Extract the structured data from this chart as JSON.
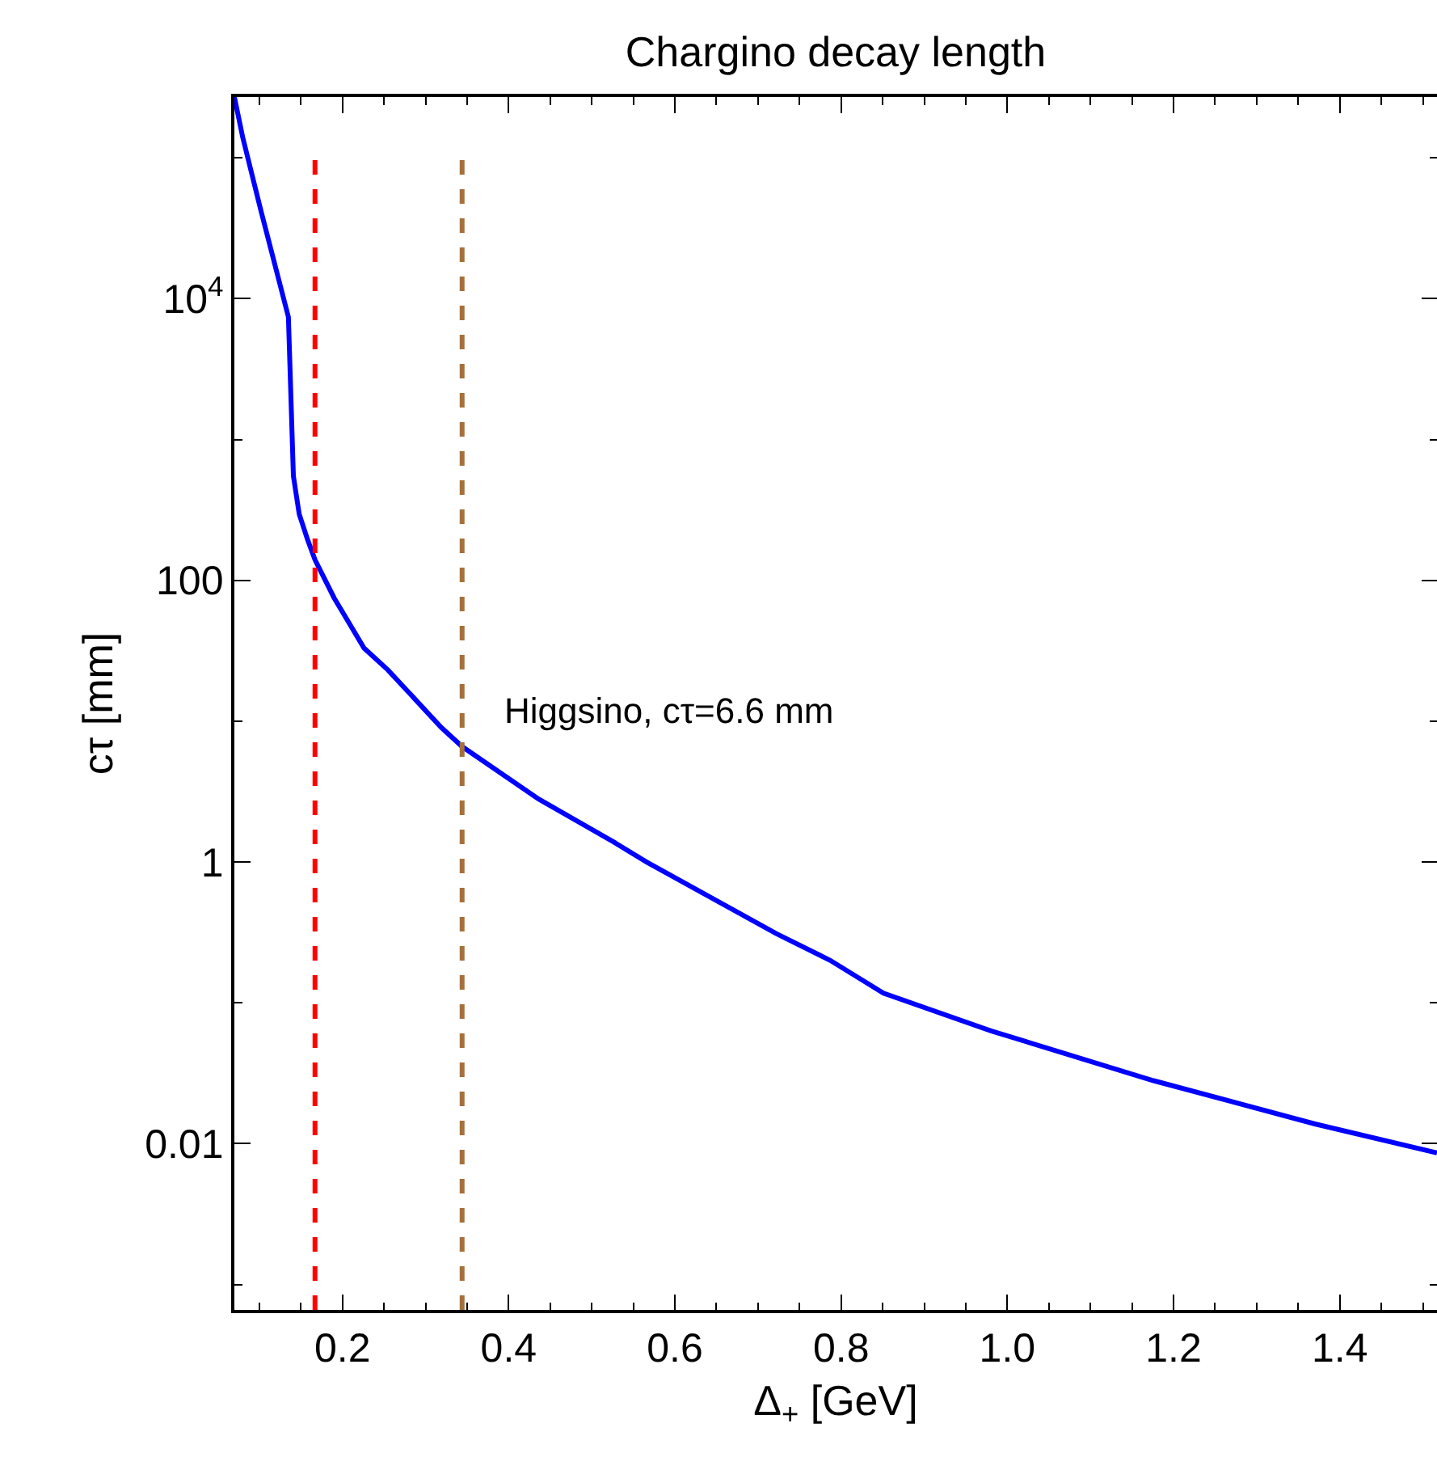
{
  "chart_data": {
    "type": "line",
    "title": "Chargino decay length",
    "xlabel": "Δ$_{+}$ [GeV]",
    "ylabel": "cτ [mm]",
    "x": [
      0.07,
      0.08,
      0.102,
      0.135,
      0.141,
      0.148,
      0.158,
      0.167,
      0.19,
      0.226,
      0.255,
      0.319,
      0.344,
      0.436,
      0.527,
      0.566,
      0.722,
      0.787,
      0.851,
      0.981,
      1.176,
      1.37,
      1.517
    ],
    "series": [
      {
        "color": "#0000ff",
        "values": [
          270000,
          140000,
          42000,
          7400,
          550,
          295,
          195,
          140,
          75,
          33,
          23,
          9,
          6.6,
          2.8,
          1.38,
          1.0,
          0.31,
          0.2,
          0.117,
          0.063,
          0.028,
          0.0138,
          0.0086
        ]
      }
    ],
    "annotations": [
      {
        "text": "Higgsino, cτ=6.6 mm",
        "x": 0.344,
        "y": 6.6
      }
    ],
    "log": "y",
    "xlim": [
      0.07,
      1.517
    ],
    "ylim": [
      0.00066,
      270000
    ],
    "xticks": [
      {
        "value": 0.1,
        "label": null
      },
      {
        "value": 0.15,
        "label": null
      },
      {
        "value": 0.2,
        "label": "0.2"
      },
      {
        "value": 0.25,
        "label": null
      },
      {
        "value": 0.3,
        "label": null
      },
      {
        "value": 0.35,
        "label": null
      },
      {
        "value": 0.4,
        "label": "0.4"
      },
      {
        "value": 0.45,
        "label": null
      },
      {
        "value": 0.5,
        "label": null
      },
      {
        "value": 0.55,
        "label": null
      },
      {
        "value": 0.6,
        "label": "0.6"
      },
      {
        "value": 0.65,
        "label": null
      },
      {
        "value": 0.7,
        "label": null
      },
      {
        "value": 0.75,
        "label": null
      },
      {
        "value": 0.8,
        "label": "0.8"
      },
      {
        "value": 0.85,
        "label": null
      },
      {
        "value": 0.9,
        "label": null
      },
      {
        "value": 0.95,
        "label": null
      },
      {
        "value": 1.0,
        "label": "1.0"
      },
      {
        "value": 1.05,
        "label": null
      },
      {
        "value": 1.1,
        "label": null
      },
      {
        "value": 1.15,
        "label": null
      },
      {
        "value": 1.2,
        "label": "1.2"
      },
      {
        "value": 1.25,
        "label": null
      },
      {
        "value": 1.3,
        "label": null
      },
      {
        "value": 1.35,
        "label": null
      },
      {
        "value": 1.4,
        "label": "1.4"
      },
      {
        "value": 1.45,
        "label": null
      },
      {
        "value": 1.5,
        "label": null
      }
    ],
    "yticks": [
      {
        "value": 0.001,
        "label": null
      },
      0.01,
      {
        "value": 0.1,
        "label": null
      },
      1,
      {
        "value": 10,
        "label": null
      },
      100,
      {
        "value": 1000,
        "label": null
      },
      {
        "value": 10000,
        "label": "10$^{4}$"
      },
      {
        "value": 100000,
        "label": null
      }
    ],
    "ref_lines": [
      {
        "axis": "x",
        "value": 0.167,
        "color": "#ff0000",
        "line_style": "dashed"
      },
      {
        "axis": "x",
        "value": 0.344,
        "color": "#a5703c",
        "line_style": "dashed"
      }
    ],
    "marker": "none",
    "line_style": "solid"
  }
}
